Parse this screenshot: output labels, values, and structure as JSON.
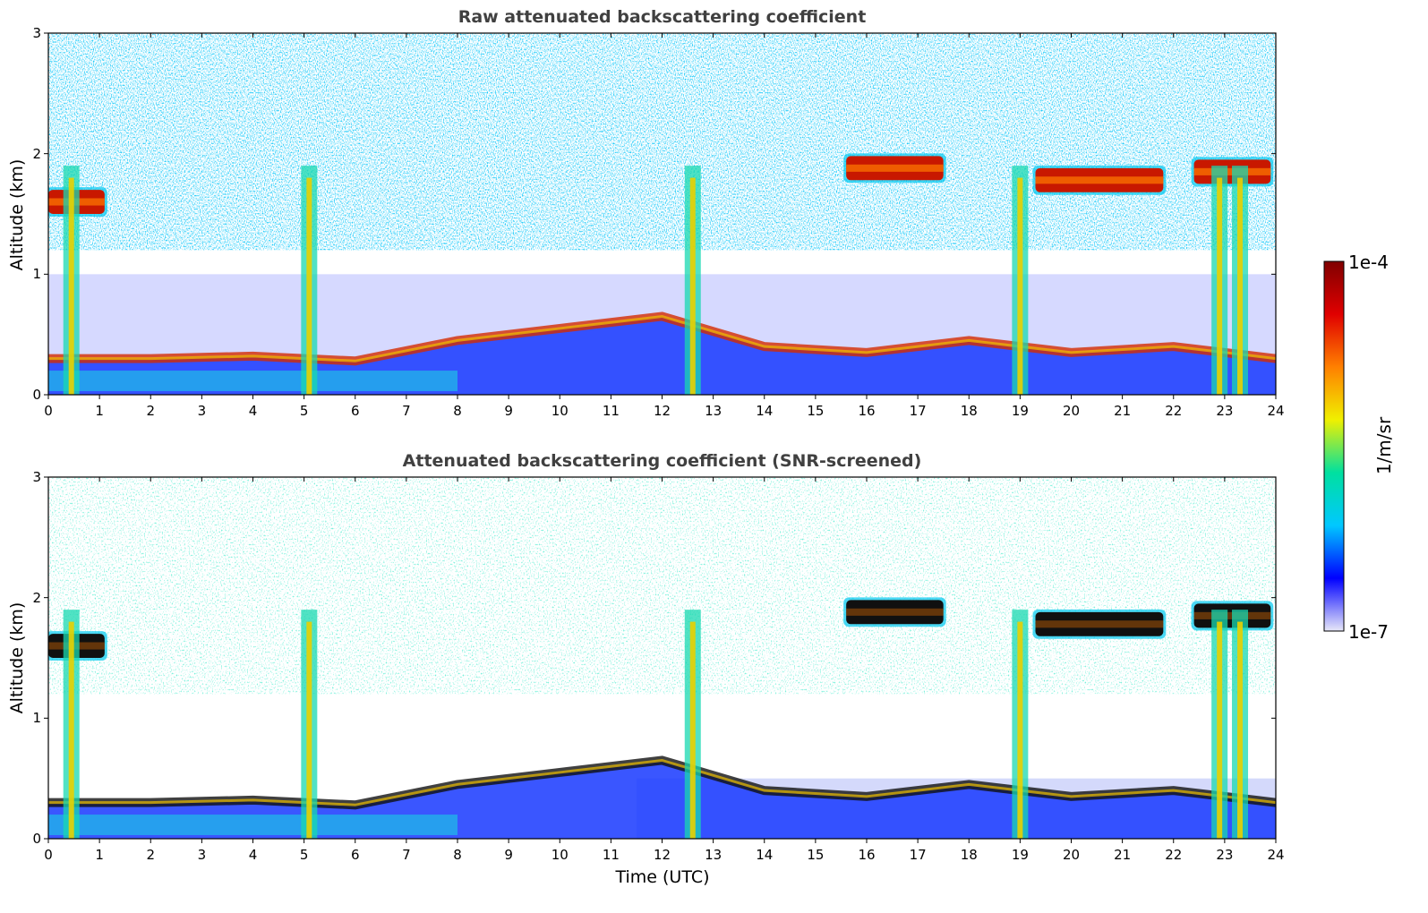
{
  "chart_data": [
    {
      "type": "heatmap",
      "title": "Raw attenuated backscattering coefficient",
      "xlabel": "",
      "ylabel": "Altitude (km)",
      "xlim": [
        0,
        24
      ],
      "ylim": [
        0,
        3
      ],
      "xticks": [
        "0",
        "1",
        "2",
        "3",
        "4",
        "5",
        "6",
        "7",
        "8",
        "9",
        "10",
        "11",
        "12",
        "13",
        "14",
        "15",
        "16",
        "17",
        "18",
        "19",
        "20",
        "21",
        "22",
        "23",
        "24"
      ],
      "yticks": [
        "0",
        "1",
        "2",
        "3"
      ],
      "features": {
        "boundary_layer_top_km": [
          [
            0,
            0.3
          ],
          [
            2,
            0.3
          ],
          [
            4,
            0.32
          ],
          [
            6,
            0.28
          ],
          [
            8,
            0.45
          ],
          [
            10,
            0.55
          ],
          [
            11,
            0.6
          ],
          [
            12,
            0.65
          ],
          [
            14,
            0.4
          ],
          [
            16,
            0.35
          ],
          [
            18,
            0.45
          ],
          [
            20,
            0.35
          ],
          [
            22,
            0.4
          ],
          [
            24,
            0.3
          ]
        ],
        "cloud_layers": [
          {
            "t_start": 15.6,
            "t_end": 17.5,
            "alt_km": 1.88
          },
          {
            "t_start": 19.3,
            "t_end": 21.8,
            "alt_km": 1.78
          },
          {
            "t_start": 22.4,
            "t_end": 23.9,
            "alt_km": 1.85
          },
          {
            "t_start": 0.0,
            "t_end": 1.1,
            "alt_km": 1.6
          }
        ],
        "precipitation_columns_utc": [
          0.45,
          5.1,
          12.6,
          19.0,
          22.9,
          23.3
        ]
      }
    },
    {
      "type": "heatmap",
      "title": "Attenuated backscattering coefficient (SNR-screened)",
      "xlabel": "Time (UTC)",
      "ylabel": "Altitude (km)",
      "xlim": [
        0,
        24
      ],
      "ylim": [
        0,
        3
      ],
      "xticks": [
        "0",
        "1",
        "2",
        "3",
        "4",
        "5",
        "6",
        "7",
        "8",
        "9",
        "10",
        "11",
        "12",
        "13",
        "14",
        "15",
        "16",
        "17",
        "18",
        "19",
        "20",
        "21",
        "22",
        "23",
        "24"
      ],
      "yticks": [
        "0",
        "1",
        "2",
        "3"
      ]
    }
  ],
  "colorbar": {
    "min_label": "1e-7",
    "max_label": "1e-4",
    "unit_label": "1/m/sr",
    "scale": "log",
    "colormap": [
      "#e8e8f8",
      "#0000ff",
      "#00c8ff",
      "#00e0a0",
      "#f0f000",
      "#ff8000",
      "#e00000",
      "#800000"
    ]
  }
}
